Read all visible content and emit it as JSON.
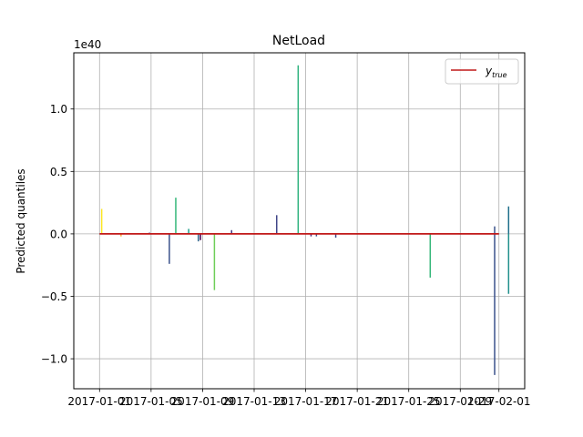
{
  "chart_data": {
    "type": "line",
    "title": "NetLoad",
    "xlabel": "",
    "ylabel": "Predicted quantiles",
    "y_exponent_label": "1e40",
    "ylim": [
      -1.24,
      1.45
    ],
    "xlim": [
      "2016-12-30",
      "2017-02-03"
    ],
    "grid": true,
    "legend": {
      "position": "top-right",
      "entries": [
        {
          "label": "y",
          "subscript": "true",
          "color": "#c01818"
        }
      ]
    },
    "y_ticks": [
      {
        "value": -1.0,
        "label": "−1.0"
      },
      {
        "value": -0.5,
        "label": "−0.5"
      },
      {
        "value": 0.0,
        "label": "0.0"
      },
      {
        "value": 0.5,
        "label": "0.5"
      },
      {
        "value": 1.0,
        "label": "1.0"
      }
    ],
    "x_ticks": [
      {
        "value": "2017-01-01",
        "label": "2017-01-01"
      },
      {
        "value": "2017-01-05",
        "label": "2017-01-05"
      },
      {
        "value": "2017-01-09",
        "label": "2017-01-09"
      },
      {
        "value": "2017-01-13",
        "label": "2017-01-13"
      },
      {
        "value": "2017-01-17",
        "label": "2017-01-17"
      },
      {
        "value": "2017-01-21",
        "label": "2017-01-21"
      },
      {
        "value": "2017-01-25",
        "label": "2017-01-25"
      },
      {
        "value": "2017-01-29",
        "label": "2017-01-29"
      },
      {
        "value": "2017-02-01",
        "label": "2017-02-01"
      }
    ],
    "series": [
      {
        "name": "y_true",
        "color": "#c01818",
        "x": [
          "2017-01-01",
          "2017-02-01"
        ],
        "y": [
          0,
          0
        ]
      }
    ],
    "quantile_spikes": [
      {
        "x": "2017-01-01 04:00",
        "y": 0.2,
        "color": "#fde725"
      },
      {
        "x": "2017-01-02 16:00",
        "y": -0.02,
        "color": "#fca636"
      },
      {
        "x": "2017-01-04 21:00",
        "y": 0.01,
        "color": "#482878"
      },
      {
        "x": "2017-01-06 10:00",
        "y": -0.24,
        "color": "#3b528b"
      },
      {
        "x": "2017-01-06 22:00",
        "y": 0.29,
        "color": "#35b779"
      },
      {
        "x": "2017-01-07 22:00",
        "y": 0.04,
        "color": "#1f9e89"
      },
      {
        "x": "2017-01-08 16:00",
        "y": -0.06,
        "color": "#31688e"
      },
      {
        "x": "2017-01-08 20:00",
        "y": -0.05,
        "color": "#440154"
      },
      {
        "x": "2017-01-09 22:00",
        "y": -0.45,
        "color": "#6ece58"
      },
      {
        "x": "2017-01-11 06:00",
        "y": 0.03,
        "color": "#443983"
      },
      {
        "x": "2017-01-14 18:00",
        "y": 0.15,
        "color": "#404688"
      },
      {
        "x": "2017-01-16 10:00",
        "y": 1.35,
        "color": "#2db27d"
      },
      {
        "x": "2017-01-17 10:00",
        "y": -0.02,
        "color": "#482878"
      },
      {
        "x": "2017-01-17 20:00",
        "y": -0.02,
        "color": "#3b528b"
      },
      {
        "x": "2017-01-19 08:00",
        "y": -0.03,
        "color": "#3e4a89"
      },
      {
        "x": "2017-01-26 16:00",
        "y": -0.35,
        "color": "#35b779"
      },
      {
        "x": "2017-01-31 16:00",
        "y": -1.13,
        "color": "#3b528b"
      },
      {
        "x": "2017-01-31 16:00",
        "y": 0.06,
        "color": "#3b528b"
      },
      {
        "x": "2017-02-01 18:00",
        "y": -0.48,
        "color": "#21918c"
      },
      {
        "x": "2017-02-01 18:00",
        "y": 0.22,
        "color": "#1f6f8b"
      }
    ]
  }
}
